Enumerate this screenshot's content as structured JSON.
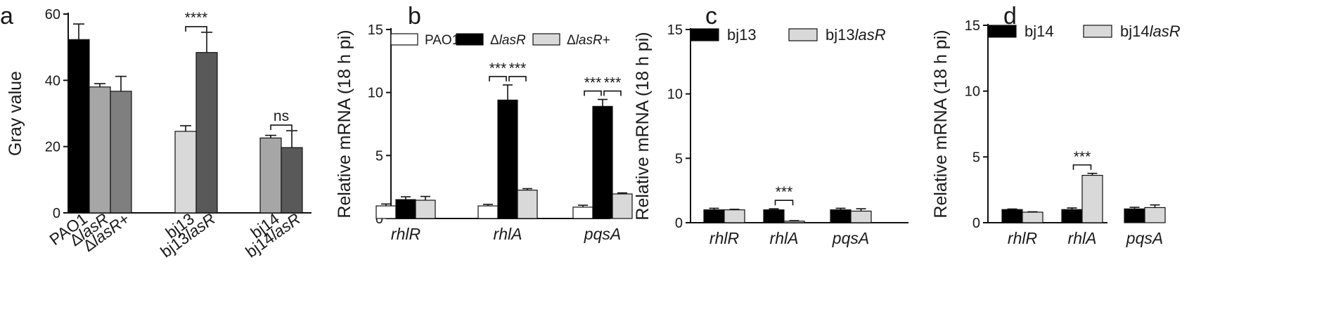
{
  "chart_data": [
    {
      "panel": "a",
      "type": "bar",
      "ylabel": "Gray value",
      "ylim": [
        0,
        60
      ],
      "yticks": [
        0,
        20,
        40,
        60
      ],
      "groups": [
        {
          "bars": [
            {
              "label": "PAO1",
              "value": 52.3,
              "error": 4.7,
              "color": "#000000"
            },
            {
              "label": "ΔlasR",
              "value": 38.0,
              "error": 1.0,
              "color": "#a6a6a6"
            },
            {
              "label": "ΔlasR+",
              "value": 36.7,
              "error": 4.5,
              "color": "#7f7f7f"
            }
          ]
        },
        {
          "bars": [
            {
              "label": "bj13",
              "value": 24.6,
              "error": 1.7,
              "color": "#d9d9d9"
            },
            {
              "label": "bj13lasR",
              "value": 48.4,
              "error": 6.1,
              "color": "#595959"
            }
          ]
        },
        {
          "bars": [
            {
              "label": "bj14",
              "value": 22.6,
              "error": 0.8,
              "color": "#a6a6a6"
            },
            {
              "label": "bj14lasR",
              "value": 19.7,
              "error": 5.1,
              "color": "#595959"
            }
          ]
        }
      ],
      "significance": [
        {
          "group": 1,
          "from": 0,
          "to": 1,
          "label": "****"
        },
        {
          "group": 2,
          "from": 0,
          "to": 1,
          "label": "ns"
        }
      ]
    },
    {
      "panel": "b",
      "type": "bar",
      "ylabel": "Relative mRNA (18 h pi)",
      "ylim": [
        0,
        15
      ],
      "yticks": [
        0,
        5,
        10,
        15
      ],
      "categories": [
        "rhlR",
        "rhlA",
        "pqsA"
      ],
      "series": [
        {
          "name": "PAO1",
          "color": "#ffffff",
          "values": [
            1.0,
            1.0,
            0.9
          ],
          "errors": [
            0.15,
            0.12,
            0.15
          ]
        },
        {
          "name": "ΔlasR",
          "color": "#000000",
          "values": [
            1.5,
            9.4,
            8.9
          ],
          "errors": [
            0.22,
            1.2,
            0.55
          ]
        },
        {
          "name": "ΔlasR+",
          "color": "#d9d9d9",
          "values": [
            1.45,
            2.25,
            1.95
          ],
          "errors": [
            0.3,
            0.12,
            0.08
          ]
        }
      ],
      "significance": [
        {
          "category": 1,
          "from": 0,
          "to": 1,
          "label": "***"
        },
        {
          "category": 1,
          "from": 1,
          "to": 2,
          "label": "***"
        },
        {
          "category": 2,
          "from": 0,
          "to": 1,
          "label": "***"
        },
        {
          "category": 2,
          "from": 1,
          "to": 2,
          "label": "***"
        }
      ],
      "legend": "top"
    },
    {
      "panel": "c",
      "type": "bar",
      "ylabel": "Relative mRNA (18 h pi)",
      "ylim": [
        0,
        15
      ],
      "yticks": [
        0,
        5,
        10,
        15
      ],
      "categories": [
        "rhlR",
        "rhlA",
        "pqsA"
      ],
      "series": [
        {
          "name": "bj13",
          "color": "#000000",
          "values": [
            1.0,
            1.0,
            1.0
          ],
          "errors": [
            0.12,
            0.08,
            0.12
          ]
        },
        {
          "name": "bj13lasR",
          "color": "#d9d9d9",
          "values": [
            1.0,
            0.12,
            0.9
          ],
          "errors": [
            0.04,
            0.04,
            0.18
          ]
        }
      ],
      "significance": [
        {
          "category": 1,
          "from": 0,
          "to": 1,
          "label": "***"
        }
      ],
      "legend": "top"
    },
    {
      "panel": "d",
      "type": "bar",
      "ylabel": "Relative mRNA (18 h pi)",
      "ylim": [
        0,
        15
      ],
      "yticks": [
        0,
        5,
        10,
        15
      ],
      "categories": [
        "rhlR",
        "rhlA",
        "pqsA"
      ],
      "series": [
        {
          "name": "bj14",
          "color": "#000000",
          "values": [
            1.0,
            1.0,
            1.05
          ],
          "errors": [
            0.04,
            0.12,
            0.12
          ]
        },
        {
          "name": "bj14lasR",
          "color": "#d9d9d9",
          "values": [
            0.8,
            3.6,
            1.15
          ],
          "errors": [
            0.03,
            0.15,
            0.2
          ]
        }
      ],
      "significance": [
        {
          "category": 1,
          "from": 0,
          "to": 1,
          "label": "***"
        }
      ],
      "legend": "top"
    }
  ]
}
